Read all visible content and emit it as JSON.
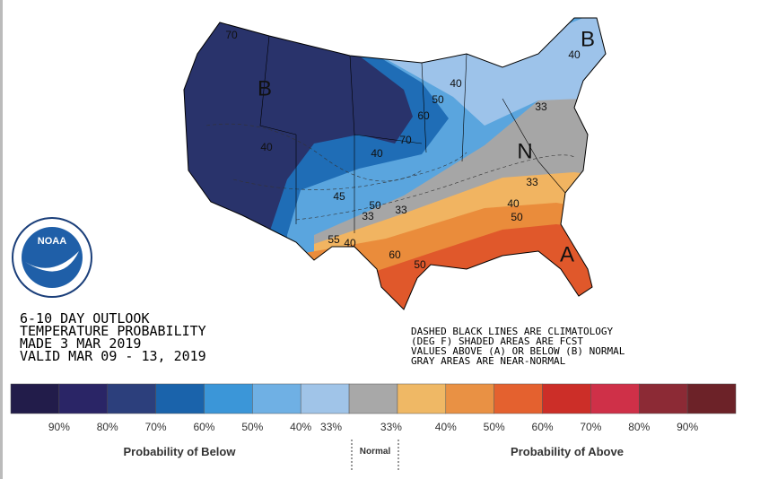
{
  "map": {
    "labels": [
      "B",
      "B",
      "N",
      "A",
      "70",
      "40",
      "50",
      "40",
      "60",
      "70",
      "40",
      "40",
      "33",
      "45",
      "50",
      "33",
      "33",
      "55",
      "40",
      "60",
      "50",
      "40",
      "50",
      "33"
    ],
    "region_colors": [
      "#29336b",
      "#1f6db6",
      "#5aa5de",
      "#9dc3ea",
      "#a6a6a6",
      "#f1b461",
      "#ea8c3b",
      "#e0582b"
    ]
  },
  "logo": {
    "text": "NOAA"
  },
  "outlook": {
    "lines": [
      "6-10 DAY OUTLOOK",
      "TEMPERATURE PROBABILITY",
      "MADE  3 MAR 2019",
      "VALID  MAR 09 - 13, 2019"
    ]
  },
  "note": {
    "lines": [
      "DASHED BLACK LINES ARE CLIMATOLOGY",
      "(DEG F) SHADED AREAS ARE FCST",
      "VALUES ABOVE (A) OR BELOW (B) NORMAL",
      "GRAY AREAS ARE NEAR-NORMAL"
    ]
  },
  "legend": {
    "colors": [
      "#221c4a",
      "#2a2566",
      "#2c3f7c",
      "#1a63ab",
      "#3b96d8",
      "#6fb0e4",
      "#a0c4e8",
      "#a8a8a8",
      "#efb865",
      "#e99144",
      "#e4612f",
      "#cc2e28",
      "#cf3048",
      "#8c2a35",
      "#6c2228"
    ],
    "labels": [
      "90%",
      "80%",
      "70%",
      "60%",
      "50%",
      "40%",
      "33%",
      "33%",
      "40%",
      "50%",
      "60%",
      "70%",
      "80%",
      "90%"
    ],
    "below": "Probability of Below",
    "normal": "Normal",
    "above": "Probability of Above"
  }
}
